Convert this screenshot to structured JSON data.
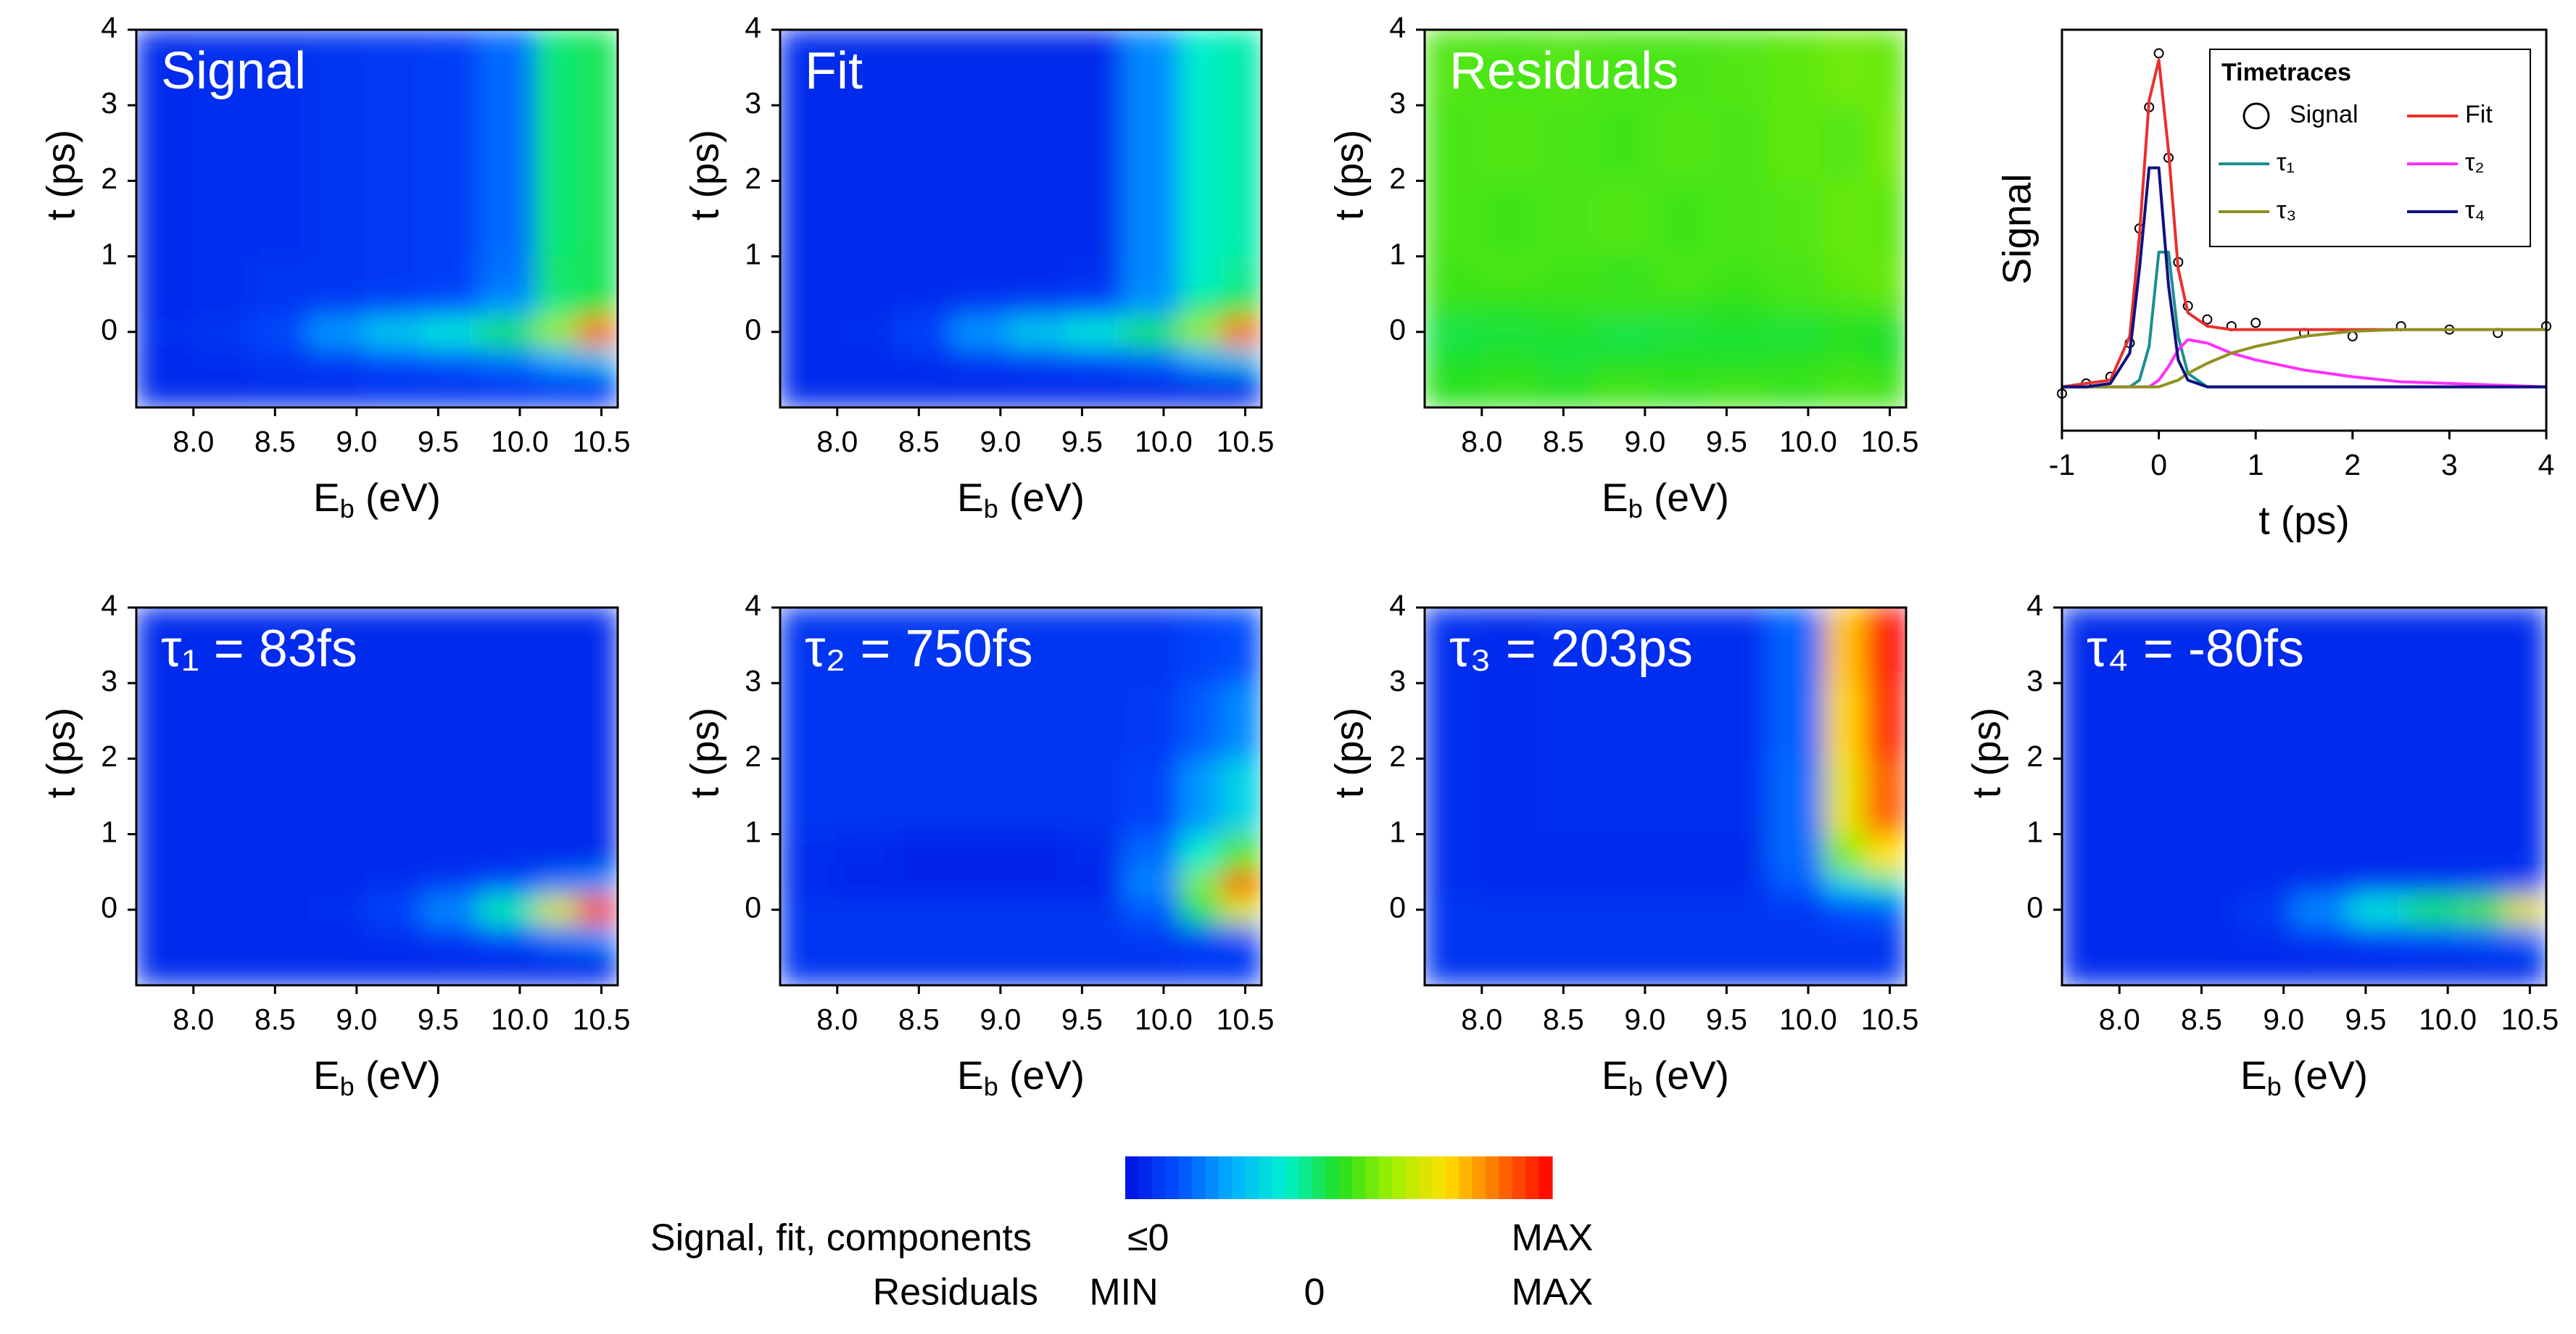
{
  "chart_data": [
    {
      "type": "heatmap",
      "title": "Signal",
      "xlabel": [
        "E",
        "b",
        " (eV)"
      ],
      "ylabel": "t (ps)",
      "xlim": [
        7.65,
        10.6
      ],
      "ylim": [
        -1,
        4
      ],
      "xticks": [
        {
          "value": 8,
          "label": "8.0"
        },
        8.5,
        {
          "value": 9,
          "label": "9.0"
        },
        9.5,
        {
          "value": 10,
          "label": "10.0"
        },
        10.5
      ],
      "yticks": [
        0,
        1,
        2,
        3,
        4
      ],
      "zlim": [
        0,
        100
      ],
      "xbins": [
        7.65,
        8.0,
        8.35,
        8.7,
        9.05,
        9.4,
        9.75,
        10.1,
        10.35,
        10.6
      ],
      "ybins": [
        -1,
        -0.5,
        -0.2,
        0.2,
        0.5,
        1,
        2,
        3,
        4
      ],
      "z": [
        [
          5,
          5,
          6,
          6,
          7,
          7,
          8,
          9,
          9
        ],
        [
          5,
          6,
          7,
          9,
          12,
          14,
          18,
          25,
          30
        ],
        [
          6,
          7,
          11,
          22,
          30,
          36,
          45,
          62,
          88
        ],
        [
          5,
          6,
          7,
          9,
          11,
          13,
          22,
          42,
          48
        ],
        [
          5,
          6,
          7,
          7,
          8,
          9,
          17,
          45,
          46
        ],
        [
          5,
          6,
          6,
          7,
          8,
          9,
          16,
          44,
          46
        ],
        [
          5,
          6,
          6,
          7,
          8,
          9,
          16,
          44,
          46
        ],
        [
          5,
          6,
          6,
          7,
          8,
          9,
          16,
          44,
          46
        ]
      ]
    },
    {
      "type": "heatmap",
      "title": "Fit",
      "xlabel": [
        "E",
        "b",
        " (eV)"
      ],
      "ylabel": "t (ps)",
      "xlim": [
        7.65,
        10.6
      ],
      "ylim": [
        -1,
        4
      ],
      "xticks": [
        {
          "value": 8,
          "label": "8.0"
        },
        8.5,
        {
          "value": 9,
          "label": "9.0"
        },
        9.5,
        {
          "value": 10,
          "label": "10.0"
        },
        10.5
      ],
      "yticks": [
        0,
        1,
        2,
        3,
        4
      ],
      "zlim": [
        0,
        100
      ],
      "xbins": [
        7.65,
        8.0,
        8.35,
        8.7,
        9.05,
        9.4,
        9.75,
        10.1,
        10.35,
        10.6
      ],
      "ybins": [
        -1,
        -0.5,
        -0.2,
        0.2,
        0.5,
        1,
        2,
        3,
        4
      ],
      "z": [
        [
          5,
          5,
          5,
          5,
          5,
          5,
          5,
          5,
          5
        ],
        [
          5,
          5,
          6,
          8,
          10,
          12,
          16,
          25,
          30
        ],
        [
          5,
          6,
          10,
          22,
          30,
          36,
          45,
          62,
          88
        ],
        [
          5,
          5,
          6,
          8,
          10,
          12,
          22,
          42,
          48
        ],
        [
          5,
          5,
          5,
          5,
          5,
          6,
          20,
          38,
          42
        ],
        [
          5,
          5,
          5,
          5,
          5,
          5,
          20,
          38,
          40
        ],
        [
          5,
          5,
          5,
          5,
          5,
          5,
          20,
          38,
          40
        ],
        [
          5,
          5,
          5,
          5,
          5,
          5,
          20,
          38,
          40
        ]
      ]
    },
    {
      "type": "heatmap",
      "title": "Residuals",
      "xlabel": [
        "E",
        "b",
        " (eV)"
      ],
      "ylabel": "t (ps)",
      "xlim": [
        7.65,
        10.6
      ],
      "ylim": [
        -1,
        4
      ],
      "xticks": [
        {
          "value": 8,
          "label": "8.0"
        },
        8.5,
        {
          "value": 9,
          "label": "9.0"
        },
        9.5,
        {
          "value": 10,
          "label": "10.0"
        },
        10.5
      ],
      "yticks": [
        0,
        1,
        2,
        3,
        4
      ],
      "zlim": [
        0,
        100
      ],
      "xbins": [
        7.65,
        8.0,
        8.35,
        8.7,
        9.05,
        9.4,
        9.75,
        10.1,
        10.35,
        10.6
      ],
      "ybins": [
        -1,
        -0.5,
        -0.2,
        0.2,
        0.5,
        1,
        2,
        3,
        4
      ],
      "z": [
        [
          51,
          52,
          51,
          53,
          52,
          53,
          52,
          54,
          53
        ],
        [
          49,
          50,
          48,
          49,
          50,
          49,
          51,
          52,
          50
        ],
        [
          47,
          48,
          49,
          47,
          48,
          49,
          48,
          50,
          49
        ],
        [
          52,
          51,
          52,
          53,
          52,
          51,
          53,
          54,
          55
        ],
        [
          53,
          54,
          53,
          52,
          54,
          53,
          54,
          56,
          57
        ],
        [
          54,
          53,
          54,
          55,
          53,
          54,
          55,
          57,
          56
        ],
        [
          54,
          55,
          54,
          53,
          55,
          54,
          56,
          55,
          58
        ],
        [
          55,
          54,
          55,
          54,
          54,
          55,
          56,
          58,
          57
        ]
      ]
    },
    {
      "type": "line",
      "ylabel": "Signal",
      "xlabel": "t (ps)",
      "xlim": [
        -1,
        4
      ],
      "ylim": [
        -0.13,
        1.06
      ],
      "xticks": [
        -1,
        0,
        1,
        2,
        3,
        4
      ],
      "legend_title": "Timetraces",
      "legend": "upper right",
      "x": [
        -1,
        -0.75,
        -0.5,
        -0.3,
        -0.2,
        -0.1,
        0,
        0.1,
        0.2,
        0.3,
        0.5,
        0.75,
        1,
        1.5,
        2,
        2.5,
        3,
        3.5,
        4
      ],
      "series": [
        {
          "name": "Signal",
          "color": "#000000",
          "marker": "o",
          "values": [
            -0.02,
            0.01,
            0.03,
            0.13,
            0.47,
            0.83,
            0.99,
            0.68,
            0.37,
            0.24,
            0.2,
            0.18,
            0.19,
            0.16,
            0.15,
            0.18,
            0.17,
            0.16,
            0.18
          ]
        },
        {
          "name": "Fit",
          "color": "#e8302c",
          "values": [
            0,
            0.01,
            0.02,
            0.15,
            0.45,
            0.85,
            0.97,
            0.7,
            0.35,
            0.22,
            0.18,
            0.17,
            0.17,
            0.17,
            0.17,
            0.17,
            0.17,
            0.17,
            0.17
          ]
        },
        {
          "name": "τ₁",
          "color": "#1a9090",
          "values": [
            0,
            0,
            0,
            0,
            0.02,
            0.12,
            0.4,
            0.4,
            0.15,
            0.04,
            0,
            0,
            0,
            0,
            0,
            0,
            0,
            0,
            0
          ]
        },
        {
          "name": "τ₂",
          "color": "#ff30ff",
          "values": [
            0,
            0,
            0,
            0,
            0,
            0,
            0.02,
            0.06,
            0.11,
            0.14,
            0.13,
            0.1,
            0.08,
            0.05,
            0.03,
            0.015,
            0.01,
            0.005,
            0
          ]
        },
        {
          "name": "τ₃",
          "color": "#909020",
          "values": [
            0,
            0,
            0,
            0,
            0,
            0,
            0,
            0.01,
            0.02,
            0.04,
            0.07,
            0.1,
            0.12,
            0.15,
            0.165,
            0.17,
            0.17,
            0.17,
            0.17
          ]
        },
        {
          "name": "τ₄",
          "color": "#101080",
          "values": [
            0,
            0,
            0.01,
            0.1,
            0.35,
            0.65,
            0.65,
            0.3,
            0.08,
            0.02,
            0,
            0,
            0,
            0,
            0,
            0,
            0,
            0,
            0
          ]
        }
      ]
    },
    {
      "type": "heatmap",
      "title": "τ₁ = 83fs",
      "xlabel": [
        "E",
        "b",
        " (eV)"
      ],
      "ylabel": "t (ps)",
      "xlim": [
        7.65,
        10.6
      ],
      "ylim": [
        -1,
        4
      ],
      "xticks": [
        {
          "value": 8,
          "label": "8.0"
        },
        8.5,
        {
          "value": 9,
          "label": "9.0"
        },
        9.5,
        {
          "value": 10,
          "label": "10.0"
        },
        10.5
      ],
      "yticks": [
        0,
        1,
        2,
        3,
        4
      ],
      "zlim": [
        0,
        100
      ],
      "xbins": [
        7.65,
        8.0,
        8.35,
        8.7,
        9.05,
        9.4,
        9.75,
        10.1,
        10.35,
        10.6
      ],
      "ybins": [
        -1,
        -0.5,
        -0.2,
        0.2,
        0.5,
        1,
        2,
        3,
        4
      ],
      "z": [
        [
          5,
          5,
          5,
          5,
          5,
          5,
          5,
          5,
          5
        ],
        [
          5,
          5,
          5,
          5,
          6,
          8,
          12,
          18,
          22
        ],
        [
          5,
          5,
          5,
          6,
          10,
          20,
          40,
          70,
          92
        ],
        [
          5,
          5,
          5,
          5,
          6,
          8,
          12,
          18,
          22
        ],
        [
          5,
          5,
          5,
          5,
          5,
          5,
          5,
          5,
          5
        ],
        [
          5,
          5,
          5,
          5,
          5,
          5,
          5,
          5,
          5
        ],
        [
          5,
          5,
          5,
          5,
          5,
          5,
          5,
          5,
          5
        ],
        [
          5,
          5,
          5,
          5,
          5,
          5,
          5,
          5,
          5
        ]
      ]
    },
    {
      "type": "heatmap",
      "title": "τ₂ = 750fs",
      "xlabel": [
        "E",
        "b",
        " (eV)"
      ],
      "ylabel": "t (ps)",
      "xlim": [
        7.65,
        10.6
      ],
      "ylim": [
        -1,
        4
      ],
      "xticks": [
        {
          "value": 8,
          "label": "8.0"
        },
        8.5,
        {
          "value": 9,
          "label": "9.0"
        },
        9.5,
        {
          "value": 10,
          "label": "10.0"
        },
        10.5
      ],
      "yticks": [
        0,
        1,
        2,
        3,
        4
      ],
      "zlim": [
        0,
        100
      ],
      "xbins": [
        7.65,
        8.0,
        8.35,
        8.7,
        9.05,
        9.4,
        9.75,
        10.1,
        10.35,
        10.6
      ],
      "ybins": [
        -1,
        -0.5,
        -0.2,
        0.2,
        0.5,
        1,
        2,
        3,
        4
      ],
      "z": [
        [
          7,
          7,
          7,
          7,
          7,
          7,
          7,
          8,
          8
        ],
        [
          7,
          7,
          7,
          7,
          7,
          7,
          8,
          10,
          12
        ],
        [
          7,
          7,
          7,
          7,
          7,
          7,
          14,
          45,
          70
        ],
        [
          5,
          4,
          4,
          4,
          4,
          4,
          20,
          60,
          95
        ],
        [
          6,
          5,
          4,
          4,
          4,
          5,
          16,
          38,
          55
        ],
        [
          7,
          7,
          7,
          7,
          7,
          7,
          10,
          22,
          32
        ],
        [
          7,
          7,
          7,
          7,
          7,
          7,
          8,
          14,
          20
        ],
        [
          7,
          7,
          7,
          7,
          7,
          7,
          7,
          10,
          12
        ]
      ]
    },
    {
      "type": "heatmap",
      "title": "τ₃ = 203ps",
      "xlabel": [
        "E",
        "b",
        " (eV)"
      ],
      "ylabel": "t (ps)",
      "xlim": [
        7.65,
        10.6
      ],
      "ylim": [
        -1,
        4
      ],
      "xticks": [
        {
          "value": 8,
          "label": "8.0"
        },
        8.5,
        {
          "value": 9,
          "label": "9.0"
        },
        9.5,
        {
          "value": 10,
          "label": "10.0"
        },
        10.5
      ],
      "yticks": [
        0,
        1,
        2,
        3,
        4
      ],
      "zlim": [
        0,
        100
      ],
      "xbins": [
        7.65,
        8.0,
        8.35,
        8.7,
        9.05,
        9.4,
        9.75,
        10.1,
        10.35,
        10.6
      ],
      "ybins": [
        -1,
        -0.5,
        -0.2,
        0.2,
        0.5,
        1,
        2,
        3,
        4
      ],
      "z": [
        [
          7,
          7,
          7,
          7,
          7,
          7,
          7,
          7,
          7
        ],
        [
          7,
          7,
          7,
          7,
          7,
          7,
          7,
          7,
          7
        ],
        [
          7,
          7,
          7,
          7,
          7,
          7,
          8,
          12,
          14
        ],
        [
          6,
          5,
          5,
          5,
          5,
          5,
          14,
          32,
          40
        ],
        [
          6,
          5,
          5,
          5,
          5,
          5,
          16,
          60,
          75
        ],
        [
          6,
          5,
          6,
          6,
          6,
          6,
          16,
          72,
          90
        ],
        [
          6,
          5,
          6,
          6,
          6,
          6,
          15,
          76,
          96
        ],
        [
          6,
          5,
          6,
          6,
          6,
          6,
          15,
          78,
          100
        ]
      ]
    },
    {
      "type": "heatmap",
      "title": "τ₄ = -80fs",
      "xlabel": [
        "E",
        "b",
        " (eV)"
      ],
      "ylabel": "t (ps)",
      "xlim": [
        7.65,
        10.6
      ],
      "ylim": [
        -1,
        4
      ],
      "xticks": [
        {
          "value": 8,
          "label": "8.0"
        },
        8.5,
        {
          "value": 9,
          "label": "9.0"
        },
        9.5,
        {
          "value": 10,
          "label": "10.0"
        },
        10.5
      ],
      "yticks": [
        0,
        1,
        2,
        3,
        4
      ],
      "zlim": [
        0,
        100
      ],
      "xbins": [
        7.65,
        8.0,
        8.35,
        8.7,
        9.05,
        9.4,
        9.75,
        10.1,
        10.35,
        10.6
      ],
      "ybins": [
        -1,
        -0.5,
        -0.2,
        0.2,
        0.5,
        1,
        2,
        3,
        4
      ],
      "z": [
        [
          5,
          5,
          5,
          5,
          5,
          5,
          5,
          5,
          5
        ],
        [
          5,
          5,
          5,
          6,
          8,
          10,
          12,
          14,
          16
        ],
        [
          5,
          5,
          5,
          8,
          20,
          35,
          45,
          55,
          72
        ],
        [
          5,
          5,
          5,
          5,
          6,
          7,
          8,
          9,
          10
        ],
        [
          5,
          5,
          5,
          5,
          5,
          5,
          5,
          5,
          5
        ],
        [
          5,
          5,
          5,
          5,
          5,
          5,
          5,
          5,
          5
        ],
        [
          5,
          5,
          5,
          5,
          5,
          5,
          5,
          5,
          5
        ],
        [
          5,
          5,
          5,
          5,
          5,
          5,
          5,
          5,
          5
        ]
      ]
    }
  ],
  "colorbar": {
    "colormap": [
      "#0010e0",
      "#0050ff",
      "#00b0ff",
      "#00f0d0",
      "#20e020",
      "#a0f000",
      "#ffe000",
      "#ff7000",
      "#ff0000"
    ],
    "rows": [
      {
        "name": "Signal, fit, components",
        "labels": [
          "≤0",
          "MAX"
        ]
      },
      {
        "name": "Residuals",
        "labels": [
          "MIN",
          "0",
          "MAX"
        ]
      }
    ]
  }
}
